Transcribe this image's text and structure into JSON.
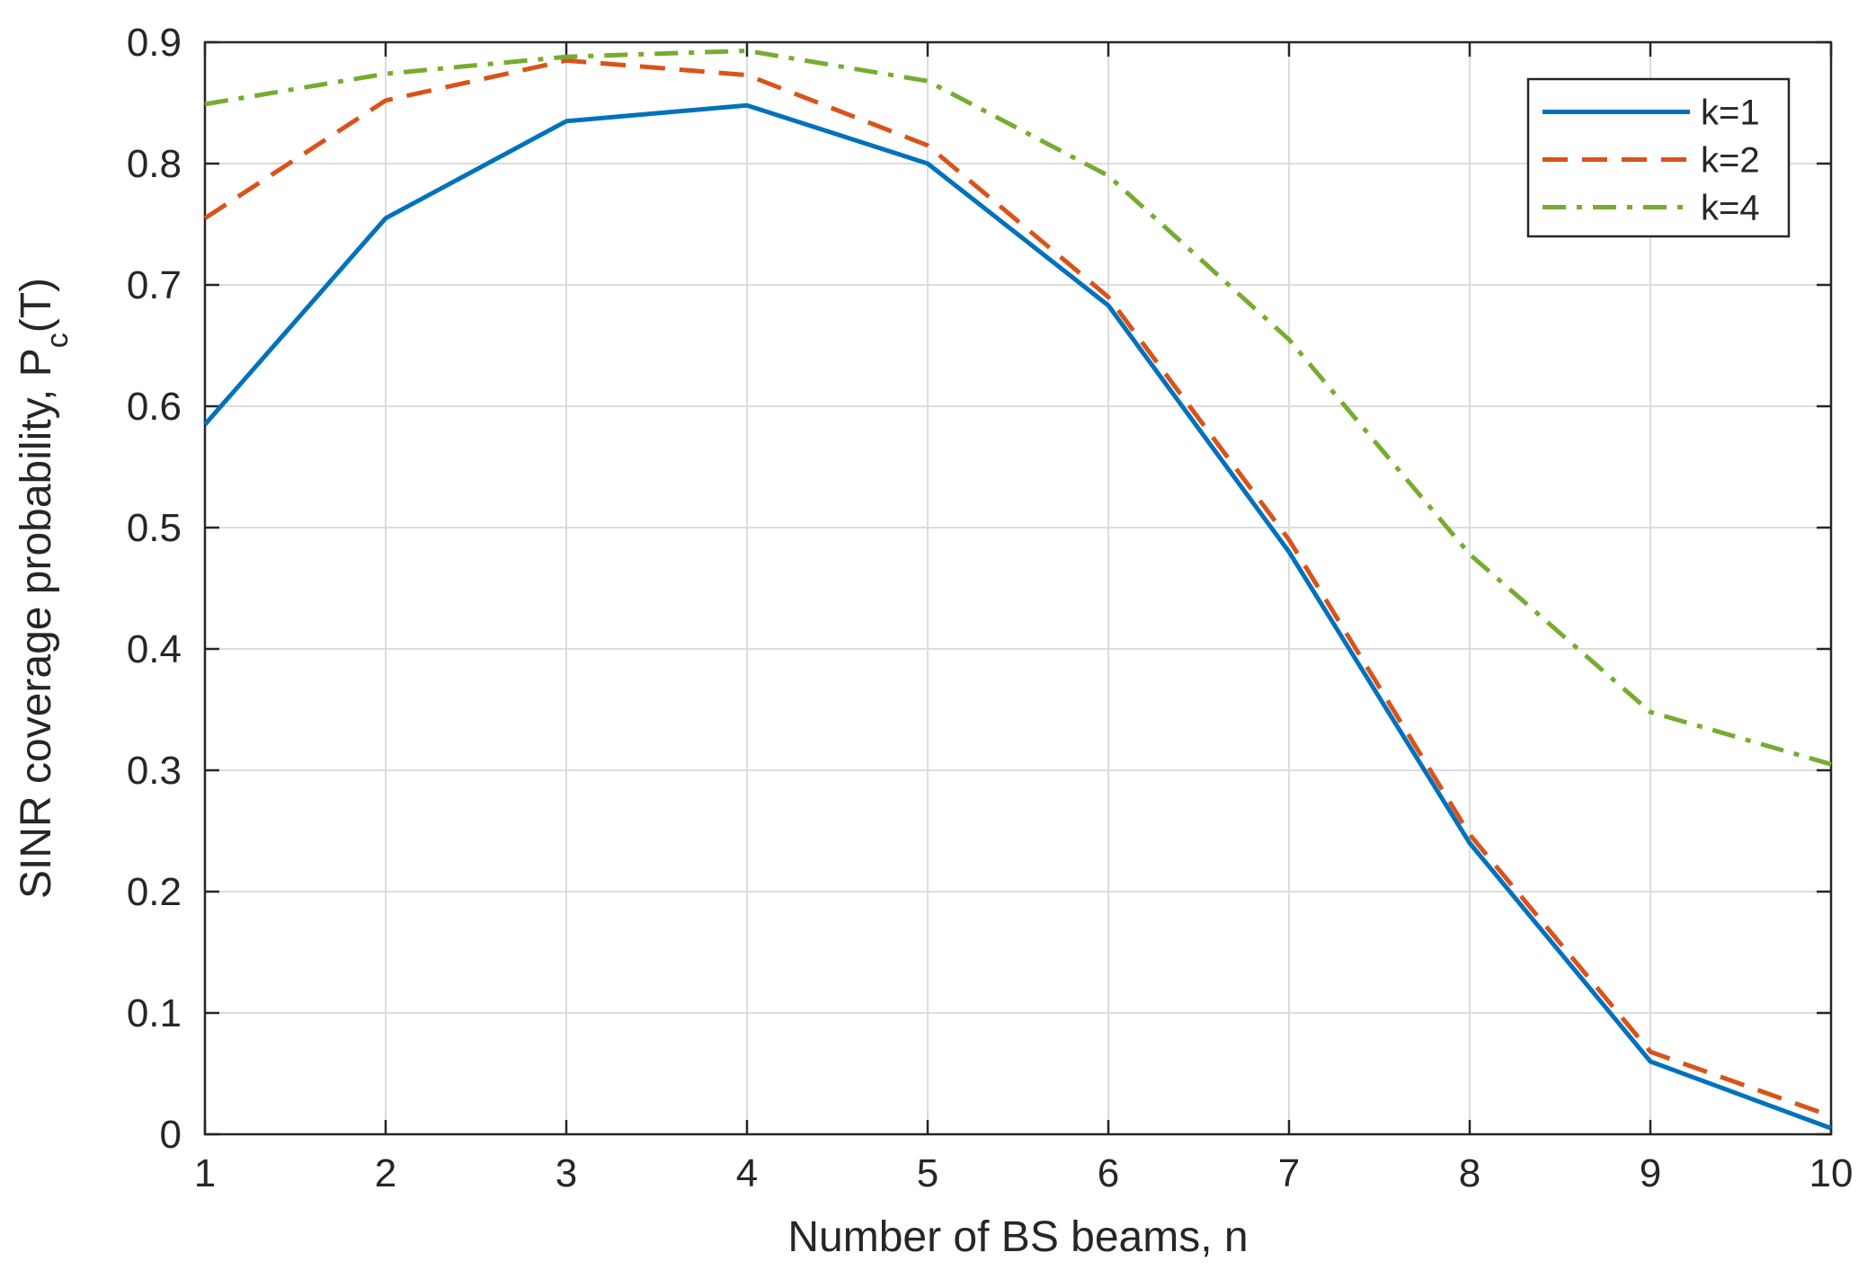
{
  "chart_data": {
    "type": "line",
    "title": "",
    "xlabel": "Number of BS beams, n",
    "ylabel_main": "SINR coverage probability, P",
    "ylabel_sub": "c",
    "ylabel_tail": "(T)",
    "xlim": [
      1,
      10
    ],
    "ylim": [
      0,
      0.9
    ],
    "xticks": [
      1,
      2,
      3,
      4,
      5,
      6,
      7,
      8,
      9,
      10
    ],
    "yticks": [
      0,
      0.1,
      0.2,
      0.3,
      0.4,
      0.5,
      0.6,
      0.7,
      0.8,
      0.9
    ],
    "grid": true,
    "legend_position": "top-right",
    "x": [
      1,
      2,
      3,
      4,
      5,
      6,
      7,
      8,
      9,
      10
    ],
    "series": [
      {
        "name": "k=1",
        "color": "#0072BD",
        "style": "solid",
        "values": [
          0.585,
          0.755,
          0.835,
          0.848,
          0.8,
          0.683,
          0.48,
          0.24,
          0.06,
          0.005
        ]
      },
      {
        "name": "k=2",
        "color": "#D95319",
        "style": "dashed",
        "values": [
          0.755,
          0.852,
          0.885,
          0.873,
          0.815,
          0.69,
          0.49,
          0.247,
          0.068,
          0.015
        ]
      },
      {
        "name": "k=4",
        "color": "#77AC30",
        "style": "dashdot",
        "values": [
          0.849,
          0.874,
          0.888,
          0.893,
          0.868,
          0.79,
          0.655,
          0.478,
          0.348,
          0.305
        ]
      }
    ]
  }
}
